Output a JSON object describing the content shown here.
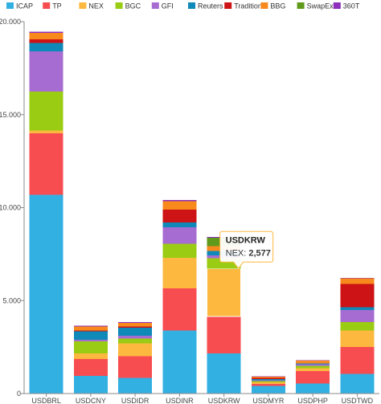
{
  "chart_data": {
    "type": "bar",
    "stacked": true,
    "categories": [
      "USDBRL",
      "USDCNY",
      "USDIDR",
      "USDINR",
      "USDKRW",
      "USDMYR",
      "USDPHP",
      "USDTWD"
    ],
    "series": [
      {
        "name": "ICAP",
        "color": "#33b0e2",
        "values": [
          10700,
          950,
          850,
          3400,
          2150,
          400,
          550,
          1050
        ]
      },
      {
        "name": "TP",
        "color": "#f84d50",
        "values": [
          3300,
          900,
          1150,
          2250,
          2000,
          120,
          650,
          1450
        ]
      },
      {
        "name": "NEX",
        "color": "#fdb83f",
        "values": [
          150,
          300,
          700,
          1650,
          2577,
          80,
          150,
          900
        ]
      },
      {
        "name": "BGC",
        "color": "#9acc14",
        "values": [
          2100,
          650,
          250,
          750,
          550,
          60,
          150,
          450
        ]
      },
      {
        "name": "GFI",
        "color": "#a76cd2",
        "values": [
          2150,
          100,
          150,
          900,
          150,
          60,
          80,
          650
        ]
      },
      {
        "name": "Reuters",
        "color": "#0f89b8",
        "values": [
          450,
          450,
          450,
          250,
          250,
          60,
          50,
          150
        ]
      },
      {
        "name": "Tradition",
        "color": "#cd1315",
        "values": [
          200,
          50,
          50,
          700,
          0,
          60,
          0,
          1250
        ]
      },
      {
        "name": "BBG",
        "color": "#f8891d",
        "values": [
          350,
          200,
          200,
          450,
          250,
          60,
          150,
          300
        ]
      },
      {
        "name": "SwapEx",
        "color": "#609a1a",
        "values": [
          0,
          0,
          0,
          0,
          450,
          0,
          0,
          0
        ]
      },
      {
        "name": "360T",
        "color": "#8e2fbb",
        "values": [
          50,
          50,
          50,
          50,
          50,
          30,
          20,
          30
        ]
      }
    ],
    "y_ticks": [
      "0",
      "5.000",
      "10.000",
      "15.000",
      "20.000"
    ],
    "ylim": [
      0,
      20000
    ],
    "legend_position": "top",
    "grid": false,
    "title": "",
    "xlabel": "",
    "ylabel": ""
  },
  "tooltip": {
    "title": "USDKRW",
    "series_name": "NEX",
    "separator": ": ",
    "value": "2,577"
  }
}
